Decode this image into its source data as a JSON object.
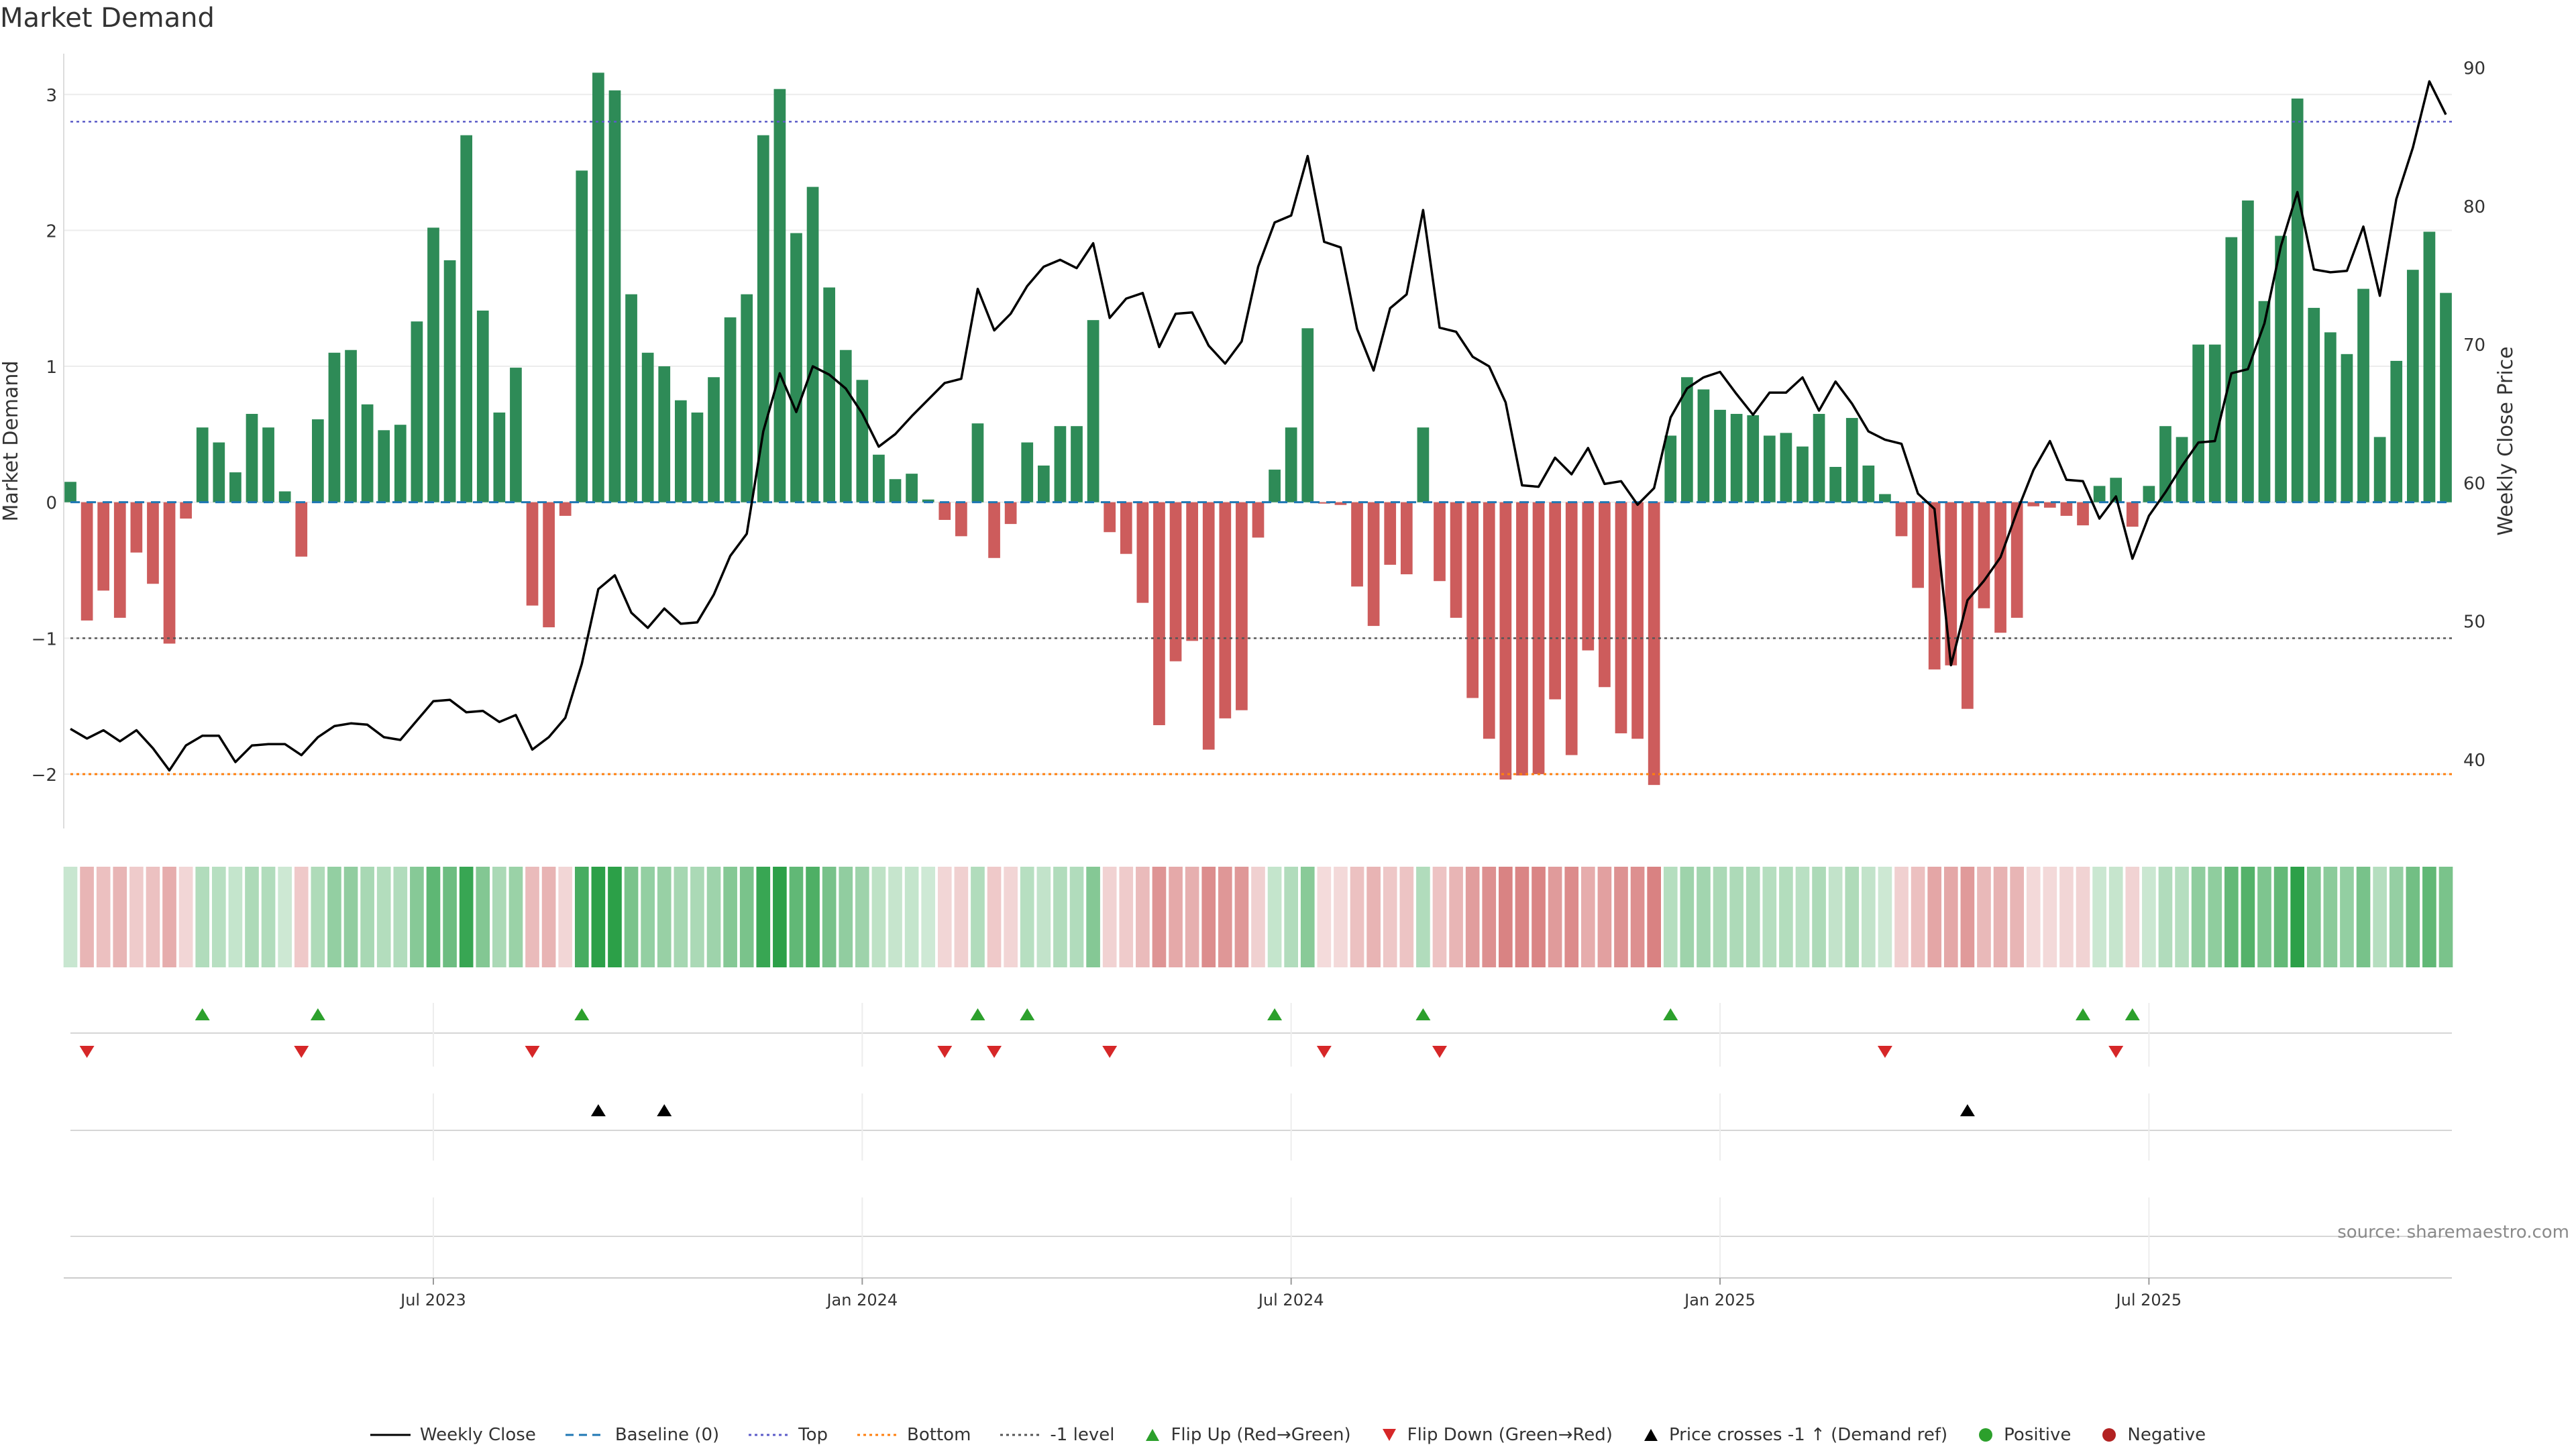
{
  "chart_data": {
    "type": "bar",
    "title": "Market Demand",
    "ylabel": "Market Demand",
    "y2label": "Weekly Close Price",
    "ylim": [
      -2.4,
      3.3
    ],
    "y2lim": [
      35,
      91
    ],
    "yticks": [
      -2,
      -1,
      0,
      1,
      2,
      3
    ],
    "yticklabels": [
      "−2",
      "−1",
      "0",
      "1",
      "2",
      "3"
    ],
    "y2ticks": [
      40,
      50,
      60,
      70,
      80,
      90
    ],
    "xticklabels": [
      "Jul 2023",
      "Jan 2024",
      "Jul 2024",
      "Jan 2025",
      "Jul 2025"
    ],
    "xtick_weeks": [
      22,
      48,
      74,
      100,
      126
    ],
    "levels": {
      "top": 2.8,
      "bottom": -2.0,
      "minus_one": -1.0,
      "baseline": 0
    },
    "series": [
      {
        "name": "Market Demand",
        "values": [
          0.15,
          -0.87,
          -0.65,
          -0.85,
          -0.37,
          -0.6,
          -1.04,
          -0.12,
          0.55,
          0.44,
          0.22,
          0.65,
          0.55,
          0.08,
          -0.4,
          0.61,
          1.1,
          1.12,
          0.72,
          0.53,
          0.57,
          1.33,
          2.02,
          1.78,
          2.7,
          1.41,
          0.66,
          0.99,
          -0.76,
          -0.92,
          -0.1,
          2.44,
          3.16,
          3.03,
          1.53,
          1.1,
          1.0,
          0.75,
          0.66,
          0.92,
          1.36,
          1.53,
          2.7,
          3.04,
          1.98,
          2.32,
          1.58,
          1.12,
          0.9,
          0.35,
          0.17,
          0.21,
          0.02,
          -0.13,
          -0.25,
          0.58,
          -0.41,
          -0.16,
          0.44,
          0.27,
          0.56,
          0.56,
          1.34,
          -0.22,
          -0.38,
          -0.74,
          -1.64,
          -1.17,
          -1.02,
          -1.82,
          -1.59,
          -1.53,
          -0.26,
          0.24,
          0.55,
          1.28,
          -0.01,
          -0.02,
          -0.62,
          -0.91,
          -0.46,
          -0.53,
          0.55,
          -0.58,
          -0.85,
          -1.44,
          -1.74,
          -2.04,
          -2.01,
          -2.0,
          -1.45,
          -1.86,
          -1.09,
          -1.36,
          -1.7,
          -1.74,
          -2.08,
          0.49,
          0.92,
          0.83,
          0.68,
          0.65,
          0.64,
          0.49,
          0.51,
          0.41,
          0.65,
          0.26,
          0.62,
          0.27,
          0.06,
          -0.25,
          -0.63,
          -1.23,
          -1.2,
          -1.52,
          -0.78,
          -0.96,
          -0.85,
          -0.03,
          -0.04,
          -0.1,
          -0.17,
          0.12,
          0.18,
          -0.18,
          0.12,
          0.56,
          0.48,
          1.16,
          1.16,
          1.95,
          2.22,
          1.48,
          1.96,
          2.97,
          1.43,
          1.25,
          1.09,
          1.57,
          0.48,
          1.04,
          1.71,
          1.99,
          1.54
        ]
      },
      {
        "name": "Weekly Close",
        "values": [
          42.2,
          41.5,
          42.1,
          41.3,
          42.1,
          40.8,
          39.2,
          41.0,
          41.7,
          41.7,
          39.8,
          41.0,
          41.1,
          41.1,
          40.3,
          41.6,
          42.4,
          42.6,
          42.5,
          41.6,
          41.4,
          42.8,
          44.2,
          44.3,
          43.4,
          43.5,
          42.7,
          43.2,
          40.7,
          41.6,
          43.0,
          46.9,
          52.3,
          53.3,
          50.6,
          49.5,
          50.9,
          49.8,
          49.9,
          51.9,
          54.7,
          56.3,
          63.7,
          67.9,
          65.1,
          68.4,
          67.8,
          66.8,
          65.0,
          62.6,
          63.5,
          64.8,
          66.0,
          67.2,
          67.5,
          74.0,
          71.0,
          72.2,
          74.2,
          75.6,
          76.1,
          75.5,
          77.3,
          71.9,
          73.3,
          73.7,
          69.8,
          72.2,
          72.3,
          69.9,
          68.6,
          70.2,
          75.6,
          78.8,
          79.3,
          83.6,
          77.4,
          77.0,
          71.1,
          68.1,
          72.6,
          73.6,
          79.7,
          71.2,
          70.9,
          69.1,
          68.4,
          65.8,
          59.8,
          59.7,
          61.8,
          60.6,
          62.5,
          59.9,
          60.1,
          58.4,
          59.6,
          64.7,
          66.8,
          67.6,
          68.0,
          66.4,
          64.9,
          66.5,
          66.5,
          67.6,
          65.2,
          67.3,
          65.7,
          63.7,
          63.1,
          62.8,
          59.2,
          58.1,
          46.8,
          51.5,
          52.9,
          54.6,
          57.9,
          60.9,
          63.0,
          60.2,
          60.1,
          57.4,
          59.0,
          54.5,
          57.6,
          59.3,
          61.2,
          62.9,
          63.0,
          67.9,
          68.2,
          71.5,
          77.1,
          81.0,
          75.4,
          75.2,
          75.3,
          78.5,
          73.5,
          80.5,
          84.2,
          89.0,
          86.6
        ]
      }
    ],
    "legend": [
      {
        "label": "Weekly Close",
        "marker": "line-solid",
        "color": "#000000"
      },
      {
        "label": "Baseline (0)",
        "marker": "line-dashed",
        "color": "#1f77b4"
      },
      {
        "label": "Top",
        "marker": "line-dotted",
        "color": "#5b5bc8"
      },
      {
        "label": "Bottom",
        "marker": "line-dotted",
        "color": "#ff7f0e"
      },
      {
        "label": "-1 level",
        "marker": "line-dotted",
        "color": "#555555"
      },
      {
        "label": "Flip Up (Red→Green)",
        "marker": "triangle-up",
        "color": "#2ca02c"
      },
      {
        "label": "Flip Down (Green→Red)",
        "marker": "triangle-down",
        "color": "#d62728"
      },
      {
        "label": "Price crosses -1 ↑ (Demand ref)",
        "marker": "triangle-up",
        "color": "#000000"
      },
      {
        "label": "Positive",
        "marker": "circle",
        "color": "#2ca02c"
      },
      {
        "label": "Negative",
        "marker": "circle",
        "color": "#b22222"
      }
    ],
    "flip_up_weeks": [
      8,
      15,
      31,
      55,
      58,
      73,
      82,
      97,
      122,
      125
    ],
    "flip_down_weeks": [
      1,
      14,
      28,
      53,
      56,
      63,
      76,
      83,
      110,
      124
    ],
    "price_cross_weeks": [
      32,
      36,
      115
    ],
    "colors": {
      "positive": "#2e8b57",
      "negative": "#cd5c5c",
      "heat_pos": "#2ca048",
      "heat_neg": "#cd5c5c"
    }
  },
  "source": "source: sharemaestro.com"
}
